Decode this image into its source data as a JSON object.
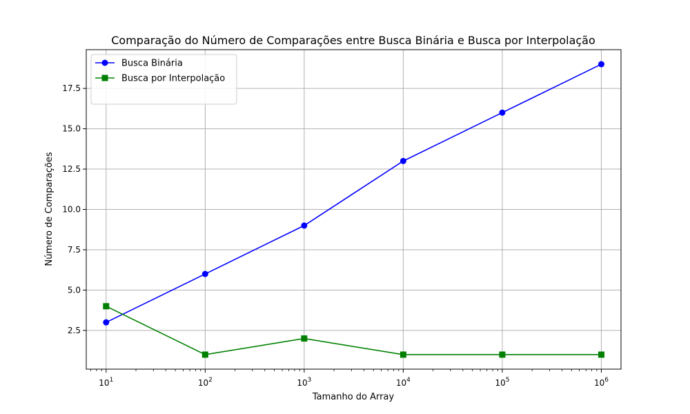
{
  "chart_data": {
    "type": "line",
    "title": "Comparação do Número de Comparações entre Busca Binária e Busca por Interpolação",
    "xlabel": "Tamanho do Array",
    "ylabel": "Número de Comparações",
    "xscale": "log",
    "x": [
      10,
      100,
      1000,
      10000,
      100000,
      1000000
    ],
    "x_ticks": [
      {
        "base": "10",
        "exp": "1"
      },
      {
        "base": "10",
        "exp": "2"
      },
      {
        "base": "10",
        "exp": "3"
      },
      {
        "base": "10",
        "exp": "4"
      },
      {
        "base": "10",
        "exp": "5"
      },
      {
        "base": "10",
        "exp": "6"
      }
    ],
    "y_ticks": [
      "2.5",
      "5.0",
      "7.5",
      "10.0",
      "12.5",
      "15.0",
      "17.5"
    ],
    "xlim": [
      6.3,
      1580000
    ],
    "ylim": [
      0.1,
      19.9
    ],
    "grid": true,
    "legend_position": "top-left",
    "series": [
      {
        "name": "Busca Binária",
        "color": "#0000ff",
        "marker": "circle",
        "values": [
          3,
          6,
          9,
          13,
          16,
          19
        ]
      },
      {
        "name": "Busca por Interpolação",
        "color": "#008000",
        "marker": "square",
        "values": [
          4,
          1,
          2,
          1,
          1,
          1
        ]
      }
    ]
  }
}
